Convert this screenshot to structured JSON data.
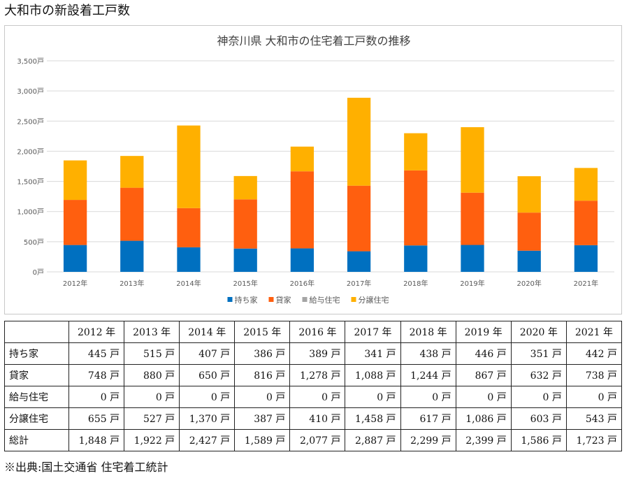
{
  "page_title": "大和市の新設着工戸数",
  "source_note": "※出典:国土交通省 住宅着工統計",
  "chart_data": {
    "type": "bar",
    "stacked": true,
    "title": "神奈川県 大和市の住宅着工戸数の推移",
    "categories": [
      "2012年",
      "2013年",
      "2014年",
      "2015年",
      "2016年",
      "2017年",
      "2018年",
      "2019年",
      "2020年",
      "2021年"
    ],
    "series": [
      {
        "name": "持ち家",
        "color": "#0070C0",
        "values": [
          445,
          515,
          407,
          386,
          389,
          341,
          438,
          446,
          351,
          442
        ]
      },
      {
        "name": "貸家",
        "color": "#FF5F0F",
        "values": [
          748,
          880,
          650,
          816,
          1278,
          1088,
          1244,
          867,
          632,
          738
        ]
      },
      {
        "name": "給与住宅",
        "color": "#A5A5A5",
        "values": [
          0,
          0,
          0,
          0,
          0,
          0,
          0,
          0,
          0,
          0
        ]
      },
      {
        "name": "分譲住宅",
        "color": "#FFB000",
        "values": [
          655,
          527,
          1370,
          387,
          410,
          1458,
          617,
          1086,
          603,
          543
        ]
      }
    ],
    "ylim": [
      0,
      3500
    ],
    "yticks": [
      {
        "value": 0,
        "label": "0戸"
      },
      {
        "value": 500,
        "label": "500戸"
      },
      {
        "value": 1000,
        "label": "1,000戸"
      },
      {
        "value": 1500,
        "label": "1,500戸"
      },
      {
        "value": 2000,
        "label": "2,000戸"
      },
      {
        "value": 2500,
        "label": "2,500戸"
      },
      {
        "value": 3000,
        "label": "3,000戸"
      },
      {
        "value": 3500,
        "label": "3,500戸"
      }
    ],
    "grid": true,
    "legend": "bottom"
  },
  "table": {
    "header": [
      "",
      "2012 年",
      "2013 年",
      "2014 年",
      "2015 年",
      "2016 年",
      "2017 年",
      "2018 年",
      "2019 年",
      "2020 年",
      "2021 年"
    ],
    "rows": [
      {
        "label": "持ち家",
        "cells": [
          "445 戸",
          "515 戸",
          "407 戸",
          "386 戸",
          "389 戸",
          "341 戸",
          "438 戸",
          "446 戸",
          "351 戸",
          "442 戸"
        ]
      },
      {
        "label": "貸家",
        "cells": [
          "748 戸",
          "880 戸",
          "650 戸",
          "816 戸",
          "1,278 戸",
          "1,088 戸",
          "1,244 戸",
          "867 戸",
          "632 戸",
          "738 戸"
        ]
      },
      {
        "label": "給与住宅",
        "cells": [
          "0 戸",
          "0 戸",
          "0 戸",
          "0 戸",
          "0 戸",
          "0 戸",
          "0 戸",
          "0 戸",
          "0 戸",
          "0 戸"
        ]
      },
      {
        "label": "分譲住宅",
        "cells": [
          "655 戸",
          "527 戸",
          "1,370 戸",
          "387 戸",
          "410 戸",
          "1,458 戸",
          "617 戸",
          "1,086 戸",
          "603 戸",
          "543 戸"
        ]
      },
      {
        "label": "総計",
        "cells": [
          "1,848 戸",
          "1,922 戸",
          "2,427 戸",
          "1,589 戸",
          "2,077 戸",
          "2,887 戸",
          "2,299 戸",
          "2,399 戸",
          "1,586 戸",
          "1,723 戸"
        ]
      }
    ]
  }
}
